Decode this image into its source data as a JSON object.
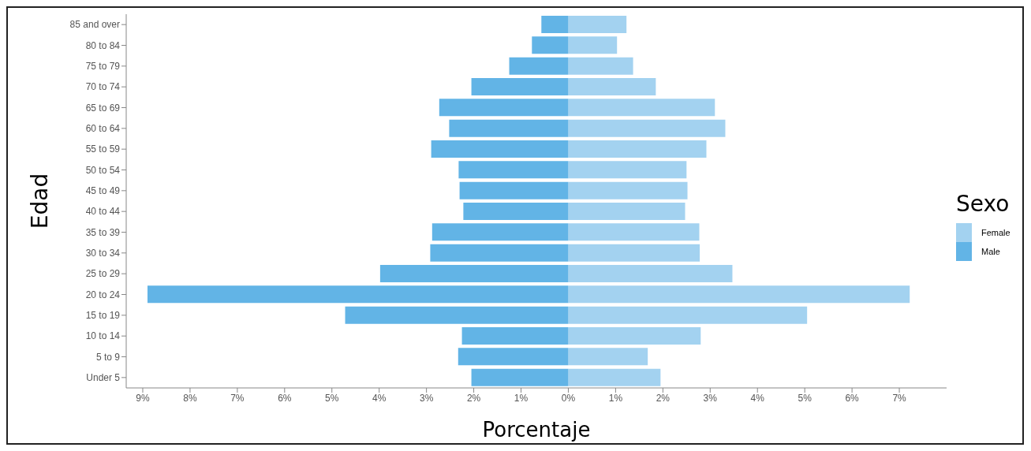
{
  "chart_data": {
    "type": "bar",
    "orientation": "horizontal",
    "stacked": true,
    "xlabel": "Porcentaje",
    "ylabel": "Edad",
    "legend_title": "Sexo",
    "legend": "right",
    "grid": false,
    "categories": [
      "85 and over",
      "80 to 84",
      "75 to 79",
      "70 to 74",
      "65 to 69",
      "60 to 64",
      "55 to 59",
      "50 to 54",
      "45 to 49",
      "40 to 44",
      "35 to 39",
      "30 to 34",
      "25 to 29",
      "20 to 24",
      "15 to 19",
      "10 to 14",
      "5 to 9",
      "Under 5"
    ],
    "series": [
      {
        "name": "Female",
        "color": "#a3d2f0",
        "values": [
          1.23,
          1.03,
          1.37,
          1.85,
          3.1,
          3.32,
          2.92,
          2.5,
          2.52,
          2.47,
          2.77,
          2.78,
          3.47,
          7.22,
          5.05,
          2.8,
          1.68,
          1.95
        ]
      },
      {
        "name": "Male",
        "color": "#62b4e6",
        "values": [
          -0.57,
          -0.77,
          -1.25,
          -2.05,
          -2.73,
          -2.52,
          -2.9,
          -2.32,
          -2.3,
          -2.22,
          -2.88,
          -2.92,
          -3.98,
          -8.9,
          -4.72,
          -2.25,
          -2.33,
          -2.05
        ]
      }
    ],
    "xlim": [
      -9.35,
      8.0
    ],
    "xticks": [
      {
        "value": -9,
        "label": "9%"
      },
      {
        "value": -8,
        "label": "8%"
      },
      {
        "value": -7,
        "label": "7%"
      },
      {
        "value": -6,
        "label": "6%"
      },
      {
        "value": -5,
        "label": "5%"
      },
      {
        "value": -4,
        "label": "4%"
      },
      {
        "value": -3,
        "label": "3%"
      },
      {
        "value": -2,
        "label": "2%"
      },
      {
        "value": -1,
        "label": "1%"
      },
      {
        "value": 0,
        "label": "0%"
      },
      {
        "value": 1,
        "label": "1%"
      },
      {
        "value": 2,
        "label": "2%"
      },
      {
        "value": 3,
        "label": "3%"
      },
      {
        "value": 4,
        "label": "4%"
      },
      {
        "value": 5,
        "label": "5%"
      },
      {
        "value": 6,
        "label": "6%"
      },
      {
        "value": 7,
        "label": "7%"
      }
    ]
  }
}
